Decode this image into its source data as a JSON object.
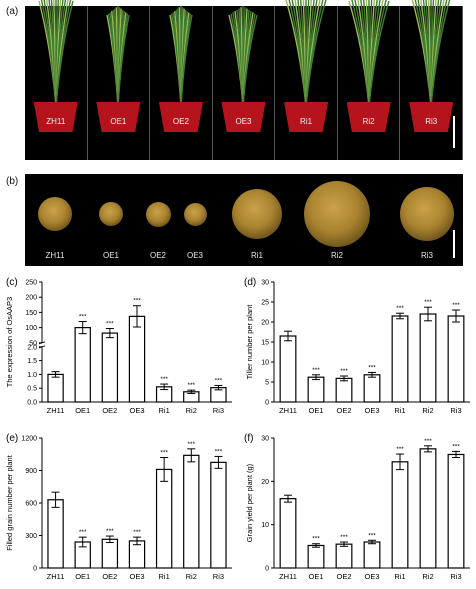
{
  "panels": {
    "a": "(a)",
    "b": "(b)",
    "c": "(c)",
    "d": "(d)",
    "e": "(e)",
    "f": "(f)"
  },
  "photo_a": {
    "labels": [
      "ZH11",
      "OE1",
      "OE2",
      "OE3",
      "Ri1",
      "Ri2",
      "Ri3"
    ],
    "colors": {
      "background": "#000000",
      "pot": "#b5141c",
      "plant": "#3f7f2f"
    }
  },
  "photo_b": {
    "labels": [
      "ZH11",
      "OE1",
      "OE2",
      "OE3",
      "Ri1",
      "Ri2",
      "Ri3"
    ],
    "colors": {
      "background": "#000000",
      "grain": "#a9832f"
    }
  },
  "chart_data": [
    {
      "type": "bar",
      "panel": "(c)",
      "ylabel": "The expression of OsAAP3",
      "categories": [
        "ZH11",
        "OE1",
        "OE2",
        "OE3",
        "Ri1",
        "Ri2",
        "Ri3"
      ],
      "values": [
        1.0,
        100,
        82,
        137,
        0.55,
        0.37,
        0.52
      ],
      "errors": [
        0.1,
        20,
        15,
        35,
        0.1,
        0.06,
        0.08
      ],
      "significance": [
        "",
        "***",
        "***",
        "***",
        "***",
        "***",
        "***"
      ],
      "broken_axis": true,
      "ylim_lower": [
        0,
        2.0
      ],
      "ylim_upper": [
        50,
        250
      ],
      "yticks_lower": [
        "0.0",
        "0.5",
        "1.0",
        "1.5",
        "2.0"
      ],
      "yticks_upper": [
        "50",
        "100",
        "150",
        "200",
        "250"
      ]
    },
    {
      "type": "bar",
      "panel": "(d)",
      "ylabel": "Tiller number per plant",
      "categories": [
        "ZH11",
        "OE1",
        "OE2",
        "OE3",
        "Ri1",
        "Ri2",
        "Ri3"
      ],
      "values": [
        16.5,
        6.2,
        5.9,
        6.8,
        21.5,
        22,
        21.5
      ],
      "errors": [
        1.2,
        0.6,
        0.6,
        0.6,
        0.7,
        1.7,
        1.5
      ],
      "significance": [
        "",
        "***",
        "***",
        "***",
        "***",
        "***",
        "***"
      ],
      "ylim": [
        0,
        30
      ],
      "yticks": [
        "0",
        "5",
        "10",
        "15",
        "20",
        "25",
        "30"
      ]
    },
    {
      "type": "bar",
      "panel": "(e)",
      "ylabel": "Filled grain number per plant",
      "categories": [
        "ZH11",
        "OE1",
        "OE2",
        "OE3",
        "Ri1",
        "Ri2",
        "Ri3"
      ],
      "values": [
        630,
        240,
        265,
        250,
        910,
        1040,
        975
      ],
      "errors": [
        70,
        45,
        30,
        35,
        110,
        60,
        55
      ],
      "significance": [
        "",
        "***",
        "***",
        "***",
        "***",
        "***",
        "***"
      ],
      "ylim": [
        0,
        1200
      ],
      "yticks": [
        "0",
        "300",
        "600",
        "900",
        "1200"
      ]
    },
    {
      "type": "bar",
      "panel": "(f)",
      "ylabel": "Grain yield per plant (g)",
      "categories": [
        "ZH11",
        "OE1",
        "OE2",
        "OE3",
        "Ri1",
        "Ri2",
        "Ri3"
      ],
      "values": [
        16,
        5.2,
        5.5,
        6,
        24.5,
        27.5,
        26.2
      ],
      "errors": [
        0.8,
        0.4,
        0.5,
        0.4,
        1.8,
        0.7,
        0.7
      ],
      "significance": [
        "",
        "***",
        "***",
        "***",
        "***",
        "***",
        "***"
      ],
      "ylim": [
        0,
        30
      ],
      "yticks": [
        "0",
        "10",
        "20",
        "30"
      ]
    }
  ]
}
